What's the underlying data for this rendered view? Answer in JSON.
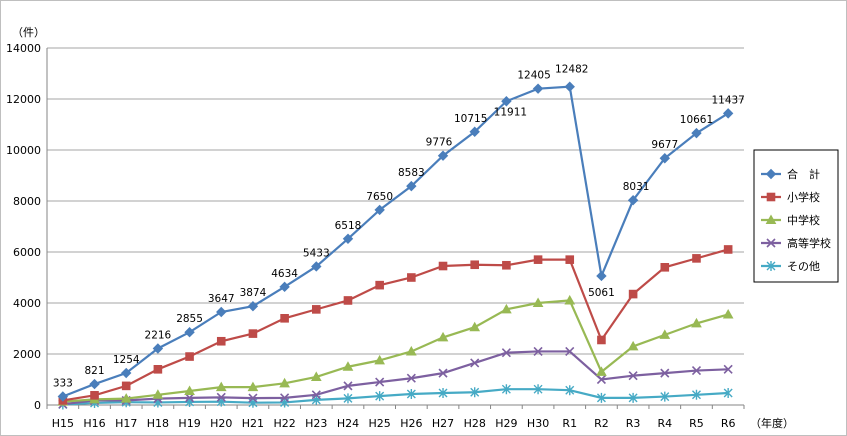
{
  "chart_data": {
    "type": "line",
    "title": "",
    "y_unit": "（件）",
    "x_unit": "（年度）",
    "ylim": [
      0,
      14000
    ],
    "yticks": [
      "0",
      "2000",
      "4000",
      "6000",
      "8000",
      "10000",
      "12000",
      "14000"
    ],
    "grid": "horizontal",
    "legend_position": "right",
    "categories": [
      "H15",
      "H16",
      "H17",
      "H18",
      "H19",
      "H20",
      "H21",
      "H22",
      "H23",
      "H24",
      "H25",
      "H26",
      "H27",
      "H28",
      "H29",
      "H30",
      "R1",
      "R2",
      "R3",
      "R4",
      "R5",
      "R6"
    ],
    "series": [
      {
        "name": "合　計",
        "color": "#4a7ebb",
        "marker": "diamond",
        "values": [
          333,
          821,
          1254,
          2216,
          2855,
          3647,
          3874,
          4634,
          5433,
          6518,
          7650,
          8583,
          9776,
          10715,
          11911,
          12405,
          12482,
          5061,
          8031,
          9677,
          10661,
          11437
        ],
        "labels": [
          "333",
          "821",
          "1254",
          "2216",
          "2855",
          "3647",
          "3874",
          "4634",
          "5433",
          "6518",
          "7650",
          "8583",
          "9776",
          "10715",
          "11911",
          "12405",
          "12482",
          "5061",
          "8031",
          "9677",
          "10661",
          "11437"
        ]
      },
      {
        "name": "小学校",
        "color": "#be4b48",
        "marker": "square",
        "values": [
          180,
          380,
          750,
          1400,
          1900,
          2500,
          2800,
          3400,
          3750,
          4100,
          4700,
          5000,
          5450,
          5500,
          5480,
          5700,
          5700,
          2550,
          4350,
          5400,
          5750,
          6100
        ]
      },
      {
        "name": "中学校",
        "color": "#98b954",
        "marker": "triangle",
        "values": [
          130,
          220,
          250,
          400,
          550,
          700,
          700,
          850,
          1100,
          1500,
          1750,
          2100,
          2650,
          3050,
          3750,
          4000,
          4100,
          1300,
          2300,
          2750,
          3200,
          3550
        ]
      },
      {
        "name": "高等学校",
        "color": "#7d60a0",
        "marker": "x",
        "values": [
          30,
          180,
          180,
          250,
          280,
          300,
          270,
          280,
          400,
          750,
          900,
          1050,
          1250,
          1650,
          2050,
          2100,
          2100,
          1000,
          1150,
          1250,
          1350,
          1400
        ]
      },
      {
        "name": "その他",
        "color": "#46aac5",
        "marker": "star",
        "values": [
          20,
          80,
          110,
          100,
          120,
          130,
          90,
          100,
          200,
          260,
          350,
          430,
          470,
          500,
          620,
          620,
          580,
          280,
          280,
          330,
          400,
          470
        ]
      }
    ]
  }
}
